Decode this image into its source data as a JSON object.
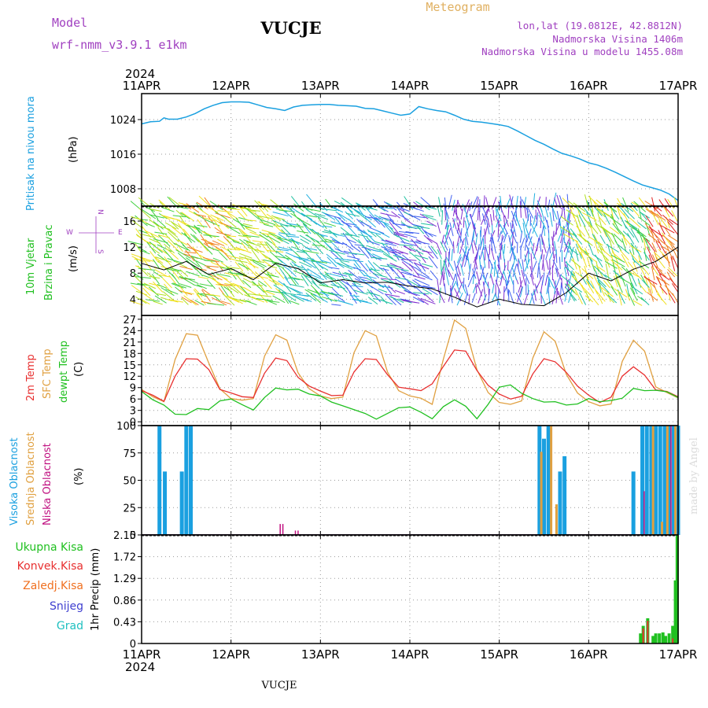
{
  "header": {
    "model_label": "Model",
    "model_name": "wrf-nmm_v3.9.1 e1km",
    "station": "VUCJE",
    "meteogram_label": "Meteogram",
    "lonlat": "lon,lat (19.0812E, 42.8812N)",
    "elevation": "Nadmorska Visina 1406m",
    "model_elevation": "Nadmorska Visina u modelu 1455.08m",
    "bottom_label": "VUCJE",
    "credit": "made by Angel"
  },
  "time_axis": {
    "year": "2024",
    "ticks": [
      "11APR",
      "12APR",
      "13APR",
      "14APR",
      "15APR",
      "16APR",
      "17APR"
    ]
  },
  "colors": {
    "pressure": "#1aa0e0",
    "wind_speed": "#000000",
    "temp2m": "#e83030",
    "sfc_temp": "#e0a040",
    "dewpt": "#20c020",
    "high_cloud": "#1aa0e0",
    "mid_cloud": "#e0a040",
    "low_cloud": "#c01080",
    "total_precip": "#20c020",
    "conv_precip": "#e83030",
    "frz_precip": "#f07020",
    "snow": "#4040d0",
    "hail": "#20c0c0"
  },
  "chart_data": [
    {
      "type": "line",
      "panel": "pressure",
      "ylabel_lines": [
        "Pritisak na nivou mora",
        "(hPa)"
      ],
      "yticks": [
        1008,
        1016,
        1024
      ],
      "ylim": [
        1004,
        1030
      ],
      "grid": true,
      "series": [
        {
          "x": [
            0,
            0.1,
            0.2,
            0.25,
            0.3,
            0.4,
            0.5,
            0.6,
            0.7,
            0.8,
            0.9,
            1.0,
            1.1,
            1.2,
            1.3,
            1.4,
            1.5,
            1.6,
            1.7,
            1.8,
            1.9,
            2.0,
            2.1,
            2.2,
            2.3,
            2.4,
            2.5,
            2.6,
            2.7,
            2.8,
            2.9,
            3.0,
            3.1,
            3.2,
            3.3,
            3.4,
            3.5,
            3.6,
            3.7,
            3.8,
            3.9,
            4.0,
            4.1,
            4.2,
            4.3,
            4.4,
            4.5,
            4.6,
            4.7,
            4.8,
            4.9,
            5.0,
            5.1,
            5.2,
            5.3,
            5.4,
            5.5,
            5.6,
            5.7,
            5.8,
            5.9,
            6.0
          ],
          "values": [
            1023,
            1023.5,
            1023.6,
            1024.4,
            1024.1,
            1024.1,
            1024.6,
            1025.4,
            1026.5,
            1027.3,
            1027.9,
            1028.1,
            1028.1,
            1028.0,
            1027.4,
            1026.8,
            1026.5,
            1026.1,
            1026.9,
            1027.3,
            1027.4,
            1027.5,
            1027.5,
            1027.3,
            1027.2,
            1027.1,
            1026.6,
            1026.5,
            1026.0,
            1025.5,
            1025.0,
            1025.3,
            1027.0,
            1026.5,
            1026.1,
            1025.8,
            1025.0,
            1024.1,
            1023.6,
            1023.4,
            1023.1,
            1022.8,
            1022.4,
            1021.4,
            1020.3,
            1019.2,
            1018.3,
            1017.2,
            1016.2,
            1015.6,
            1014.9,
            1014.0,
            1013.5,
            1012.7,
            1011.8,
            1010.8,
            1009.8,
            1008.9,
            1008.3,
            1007.7,
            1006.8,
            1005.3
          ]
        }
      ]
    },
    {
      "type": "line",
      "panel": "wind",
      "ylabel_lines": [
        "10m Vjetar",
        "Brzina i Pravac",
        "(m/s)"
      ],
      "compass": {
        "n": "N",
        "s": "S",
        "e": "E",
        "w": "W"
      },
      "yticks": [
        4,
        8,
        12,
        16
      ],
      "ylim": [
        1.5,
        18.3
      ],
      "grid": true,
      "series": [
        {
          "name": "wind speed",
          "x": [
            0,
            0.25,
            0.5,
            0.75,
            1.0,
            1.25,
            1.5,
            1.75,
            2.0,
            2.25,
            2.5,
            2.75,
            3.0,
            3.25,
            3.5,
            3.75,
            4.0,
            4.25,
            4.5,
            4.75,
            5.0,
            5.25,
            5.5,
            5.75,
            6.0
          ],
          "values": [
            9.5,
            8.5,
            9.8,
            7.8,
            8.7,
            7.0,
            9.5,
            8.7,
            6.5,
            7.0,
            6.5,
            6.6,
            6.0,
            5.6,
            4.3,
            2.8,
            4.0,
            3.2,
            3.0,
            5.0,
            8.0,
            6.8,
            8.6,
            9.8,
            12.0
          ]
        }
      ],
      "barbs_note": "Colored wind direction vectors spanning the whole panel"
    },
    {
      "type": "line",
      "panel": "temperature",
      "ylabel_lines": [
        "2m Temp",
        "SFC Temp",
        "dewpt Temp",
        "(C)"
      ],
      "yticks": [
        0,
        3,
        6,
        9,
        12,
        15,
        18,
        21,
        24,
        27
      ],
      "ylim": [
        -1,
        28
      ],
      "grid": true,
      "series": [
        {
          "name": "2m Temp",
          "x": [
            0,
            0.125,
            0.25,
            0.375,
            0.5,
            0.625,
            0.75,
            0.875,
            1.0,
            1.125,
            1.25,
            1.375,
            1.5,
            1.625,
            1.75,
            1.875,
            2.0,
            2.125,
            2.25,
            2.375,
            2.5,
            2.625,
            2.75,
            2.875,
            3.0,
            3.125,
            3.25,
            3.375,
            3.5,
            3.625,
            3.75,
            3.875,
            4.0,
            4.125,
            4.25,
            4.375,
            4.5,
            4.625,
            4.75,
            4.875,
            5.0,
            5.125,
            5.25,
            5.375,
            5.5,
            5.625,
            5.75,
            5.875,
            6.0
          ],
          "values": [
            8.2,
            7,
            5.4,
            12,
            16.6,
            16.5,
            13.8,
            8.5,
            7.6,
            6.6,
            6.4,
            12.8,
            16.8,
            16.1,
            11.7,
            9.4,
            8.1,
            6.9,
            7.0,
            13.1,
            16.6,
            16.4,
            12.4,
            9.1,
            8.7,
            8.2,
            10.0,
            14.6,
            18.9,
            18.6,
            13.5,
            9.6,
            7.3,
            6.0,
            6.7,
            12.6,
            16.6,
            15.8,
            13.0,
            9.4,
            7.0,
            5.1,
            6.5,
            12.0,
            14.5,
            12.3,
            8.4,
            8.0,
            6.6
          ]
        },
        {
          "name": "SFC Temp",
          "x": [
            0,
            0.125,
            0.25,
            0.375,
            0.5,
            0.625,
            0.75,
            0.875,
            1.0,
            1.125,
            1.25,
            1.375,
            1.5,
            1.625,
            1.75,
            1.875,
            2.0,
            2.125,
            2.25,
            2.375,
            2.5,
            2.625,
            2.75,
            2.875,
            3.0,
            3.125,
            3.25,
            3.375,
            3.5,
            3.625,
            3.75,
            3.875,
            4.0,
            4.125,
            4.25,
            4.375,
            4.5,
            4.625,
            4.75,
            4.875,
            5.0,
            5.125,
            5.25,
            5.375,
            5.5,
            5.625,
            5.75,
            5.875,
            6.0
          ],
          "values": [
            8.5,
            6.6,
            5.3,
            16.4,
            23.2,
            22.8,
            15.5,
            8.7,
            6.1,
            5.7,
            6.1,
            17.3,
            22.9,
            21.5,
            12.9,
            8.7,
            6.8,
            6.1,
            6.5,
            18.2,
            24.0,
            22.6,
            13.1,
            8.2,
            6.8,
            6.2,
            4.6,
            16.5,
            26.8,
            24.6,
            13.7,
            7.7,
            5.1,
            4.6,
            5.5,
            16.8,
            23.7,
            21.2,
            12.5,
            7.6,
            5.3,
            4.2,
            4.7,
            15.9,
            21.5,
            18.6,
            9.2,
            7.7,
            6.3
          ]
        },
        {
          "name": "dewpt Temp",
          "x": [
            0,
            0.125,
            0.25,
            0.375,
            0.5,
            0.625,
            0.75,
            0.875,
            1.0,
            1.125,
            1.25,
            1.375,
            1.5,
            1.625,
            1.75,
            1.875,
            2.0,
            2.125,
            2.25,
            2.375,
            2.5,
            2.625,
            2.75,
            2.875,
            3.0,
            3.125,
            3.25,
            3.375,
            3.5,
            3.625,
            3.75,
            3.875,
            4.0,
            4.125,
            4.25,
            4.375,
            4.5,
            4.625,
            4.75,
            4.875,
            5.0,
            5.125,
            5.25,
            5.375,
            5.5,
            5.625,
            5.75,
            5.875,
            6.0
          ],
          "values": [
            8.0,
            5.8,
            4.4,
            2.0,
            1.9,
            3.5,
            3.2,
            5.5,
            6.0,
            4.5,
            3.1,
            6.4,
            8.9,
            8.4,
            8.6,
            7.3,
            6.8,
            5.2,
            4.2,
            3.2,
            2.2,
            0.7,
            2.2,
            3.7,
            3.9,
            2.5,
            0.8,
            4.0,
            5.8,
            4.1,
            0.8,
            4.6,
            9.1,
            9.7,
            7.5,
            6.1,
            5.2,
            5.3,
            4.4,
            4.7,
            6.1,
            5.3,
            5.6,
            6.2,
            8.8,
            8.2,
            8.3,
            7.9,
            6.4
          ]
        }
      ]
    },
    {
      "type": "bar",
      "panel": "cloud",
      "ylabel_lines": [
        "Visoka Oblacnost",
        "Srednja Oblacnost",
        "Niska Oblacnost",
        "(%)"
      ],
      "yticks": [
        0,
        25,
        50,
        75,
        100
      ],
      "ylim": [
        0,
        100
      ],
      "grid": true,
      "series": [
        {
          "name": "Visoka Oblacnost",
          "x": [
            0.2,
            0.26,
            0.45,
            0.5,
            0.55,
            4.45,
            4.5,
            4.55,
            4.68,
            4.73,
            5.5,
            5.6,
            5.65,
            5.7,
            5.75,
            5.8,
            5.85,
            5.9,
            5.95,
            6.0
          ],
          "values": [
            100,
            58,
            58,
            100,
            100,
            100,
            88,
            100,
            58,
            72,
            58,
            100,
            100,
            100,
            100,
            100,
            100,
            100,
            100,
            100
          ]
        },
        {
          "name": "Srednja Oblacnost",
          "x": [
            4.47,
            4.58,
            4.64,
            5.72,
            5.82,
            5.88,
            5.97
          ],
          "values": [
            76,
            100,
            28,
            100,
            12,
            100,
            100
          ]
        },
        {
          "name": "Niska Oblacnost",
          "x": [
            1.55,
            1.58,
            1.72,
            1.75,
            5.62,
            5.92
          ],
          "values": [
            10,
            10,
            4,
            4,
            40,
            100
          ]
        }
      ]
    },
    {
      "type": "bar",
      "panel": "precip",
      "ylabel_lines": [
        "1hr Precip (mm)"
      ],
      "legend": [
        "Ukupna Kisa",
        "Konvek.Kisa",
        "Zaledj.Kisa",
        "Snijeg",
        "Grad"
      ],
      "yticks": [
        0,
        0.43,
        0.86,
        1.29,
        1.72,
        2.15
      ],
      "ylim": [
        0,
        2.15
      ],
      "grid": true,
      "series": [
        {
          "name": "Ukupna Kisa",
          "x": [
            5.58,
            5.61,
            5.66,
            5.72,
            5.75,
            5.79,
            5.83,
            5.86,
            5.9,
            5.94,
            5.97,
            5.99
          ],
          "values": [
            0.2,
            0.35,
            0.5,
            0.15,
            0.2,
            0.2,
            0.22,
            0.15,
            0.2,
            0.35,
            1.25,
            2.15
          ]
        },
        {
          "name": "Konvek.Kisa",
          "x": [
            5.61,
            5.66,
            5.94
          ],
          "values": [
            0.3,
            0.45,
            0.1
          ]
        }
      ]
    }
  ]
}
